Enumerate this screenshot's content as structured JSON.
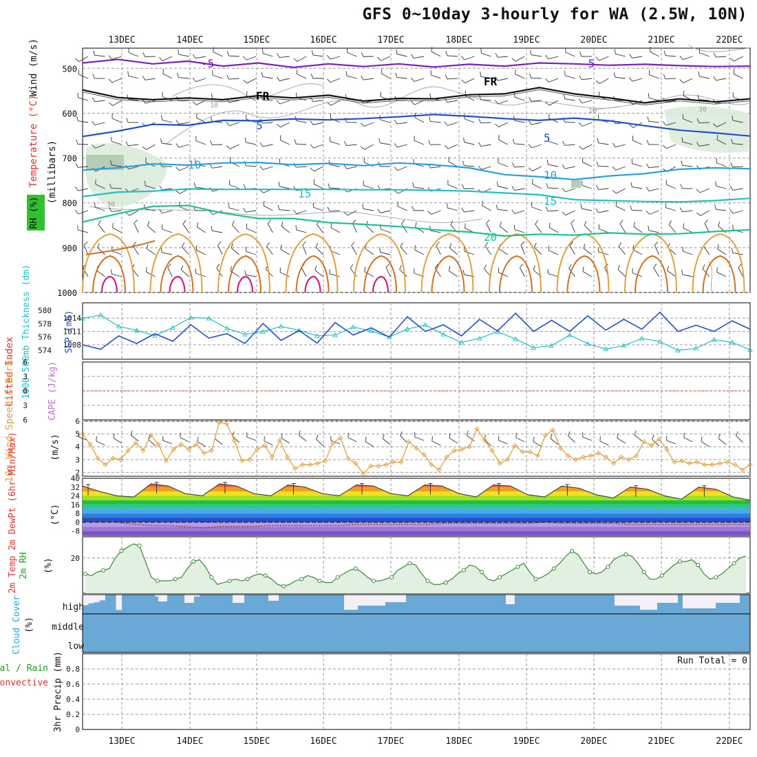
{
  "title": "GFS 0~10day 3-hourly for WA (2.5W, 10N)",
  "dates": [
    "13DEC",
    "14DEC",
    "15DEC",
    "16DEC",
    "17DEC",
    "18DEC",
    "19DEC",
    "20DEC",
    "21DEC",
    "22DEC"
  ],
  "colors": {
    "purple": "#7a1fbf",
    "blue": "#1f4fcf",
    "lightblue": "#2a9fdf",
    "cyan": "#20c0c0",
    "teal": "#20c090",
    "orange": "#e0a040",
    "darkorange": "#d07020",
    "magenta": "#d0207f",
    "green": "#20a020",
    "red": "#e03030",
    "cloud": "#6aa8d6"
  },
  "chart_data": [
    {
      "panel": "upper-air",
      "type": "line",
      "ylabel_parts": [
        "Wind (m/s)",
        "Temperature (°C)",
        "RH (%)"
      ],
      "yaxis_label": "(millibars)",
      "yticks": [
        500,
        600,
        700,
        800,
        900,
        1000
      ],
      "ylim": [
        455,
        1000
      ],
      "isotherm_labels": [
        {
          "value": "-5",
          "color": "#7a1fbf"
        },
        {
          "value": "FR",
          "color": "#000000"
        },
        {
          "value": "5",
          "color": "#1f4fcf"
        },
        {
          "value": "10",
          "color": "#2a9fdf"
        },
        {
          "value": "15",
          "color": "#20c0c0"
        },
        {
          "value": "20",
          "color": "#20c090"
        }
      ],
      "rh_labels": [
        "10",
        "30",
        "10",
        "30"
      ],
      "series": [
        {
          "name": "-5",
          "pressure": [
            488,
            480,
            490,
            484,
            495,
            488,
            498,
            490,
            496,
            490,
            497,
            491,
            495,
            488,
            490,
            493,
            491,
            494,
            496,
            495
          ]
        },
        {
          "name": "FR",
          "pressure": [
            548,
            565,
            570,
            566,
            570,
            561,
            566,
            560,
            573,
            567,
            568,
            559,
            557,
            543,
            557,
            566,
            577,
            568,
            575,
            568
          ]
        },
        {
          "name": "5",
          "pressure": [
            652,
            640,
            625,
            627,
            616,
            617,
            613,
            615,
            612,
            608,
            603,
            607,
            612,
            616,
            611,
            617,
            628,
            638,
            644,
            651
          ]
        },
        {
          "name": "10",
          "pressure": [
            727,
            722,
            713,
            716,
            711,
            710,
            715,
            712,
            717,
            711,
            715,
            722,
            737,
            742,
            748,
            740,
            735,
            725,
            722,
            724
          ]
        },
        {
          "name": "15",
          "pressure": [
            786,
            776,
            774,
            769,
            770,
            770,
            770,
            770,
            771,
            771,
            772,
            774,
            778,
            782,
            793,
            795,
            797,
            798,
            795,
            790
          ]
        },
        {
          "name": "20",
          "pressure": [
            843,
            824,
            808,
            806,
            823,
            835,
            835,
            844,
            848,
            853,
            860,
            865,
            874,
            870,
            872,
            867,
            870,
            869,
            864,
            860
          ]
        }
      ]
    },
    {
      "panel": "thickness-slp",
      "type": "line",
      "ylabel_left": "1000-500mb Thickness (dm)",
      "ylabel_right": "SLP (mb)",
      "left_ticks": [
        574,
        576,
        578,
        580
      ],
      "right_ticks": [
        1008,
        1011,
        1014
      ],
      "series": [
        {
          "name": "Thickness",
          "color": "#20c0c0",
          "values": [
            578.8,
            579.3,
            577.6,
            577.0,
            576.2,
            577.4,
            578.9,
            578.8,
            577.3,
            576.4,
            576.8,
            577.6,
            577.0,
            576.2,
            576.3,
            577.5,
            576.9,
            576.0,
            577.2,
            577.8,
            576.4,
            575.2,
            575.8,
            576.8,
            575.7,
            574.4,
            574.7,
            576.3,
            575.0,
            574.2,
            574.7,
            575.8,
            575.3,
            574.0,
            574.3,
            575.6,
            575.2,
            574.1
          ]
        },
        {
          "name": "SLP",
          "color": "#1f4fcf",
          "values": [
            1008.0,
            1007.0,
            1010.0,
            1008.3,
            1010.5,
            1008.8,
            1012.5,
            1009.5,
            1010.5,
            1008.3,
            1012.8,
            1009.0,
            1011.2,
            1008.4,
            1013.0,
            1010.2,
            1011.8,
            1009.7,
            1014.3,
            1011.0,
            1012.5,
            1010.0,
            1013.7,
            1011.1,
            1015.1,
            1011.0,
            1013.5,
            1011.0,
            1014.5,
            1011.3,
            1013.7,
            1011.5,
            1015.3,
            1011.0,
            1012.4,
            1011.0,
            1013.4,
            1011.5
          ]
        }
      ]
    },
    {
      "panel": "stability",
      "type": "line",
      "ylabel_left": "Lifted Index",
      "ylabel_right": "CAPE (J/kg)",
      "ticks": [
        "6",
        "3",
        "0",
        "3",
        "6"
      ],
      "ylim": [
        -6,
        6
      ],
      "series": [
        {
          "name": "Lifted Index",
          "values": [
            0,
            0
          ]
        }
      ]
    },
    {
      "panel": "10m-wind",
      "type": "line",
      "ylabel": "10m Wind Speed & Barbs",
      "yunit": "(m/s)",
      "yticks": [
        2,
        3,
        4,
        5,
        6
      ],
      "ylim": [
        1.7,
        6
      ],
      "series": [
        {
          "name": "Wind Speed",
          "color": "#e0a040",
          "values": [
            5.0,
            4.2,
            3.1,
            2.6,
            3.1,
            3.0,
            3.7,
            4.3,
            3.7,
            4.9,
            4.2,
            2.9,
            3.8,
            4.2,
            3.8,
            4.2,
            3.5,
            3.7,
            5.9,
            5.8,
            4.5,
            2.9,
            3.0,
            3.8,
            4.1,
            3.2,
            4.5,
            3.2,
            2.3,
            2.6,
            2.6,
            2.7,
            2.9,
            4.3,
            4.7,
            3.1,
            2.7,
            1.9,
            2.5,
            2.5,
            2.6,
            2.8,
            2.8,
            4.4,
            3.9,
            3.4,
            2.6,
            2.2,
            3.2,
            3.7,
            3.8,
            4.0,
            5.4,
            4.5,
            3.7,
            2.7,
            3.0,
            4.1,
            3.6,
            3.6,
            3.3,
            4.9,
            5.3,
            3.9,
            3.3,
            3.0,
            3.2,
            3.3,
            3.5,
            3.2,
            2.7,
            3.2,
            3.0,
            3.3,
            4.4,
            4.1,
            4.6,
            3.8,
            2.8,
            2.9,
            2.7,
            2.8,
            2.6,
            2.6,
            2.7,
            2.8,
            2.6,
            2.2,
            2.6
          ]
        }
      ]
    },
    {
      "panel": "2m-temp",
      "type": "area",
      "ylabel": "2m Temp 2m DewPt (6hr Min/Max)",
      "yunit": "(°C)",
      "yticks": [
        40,
        32,
        24,
        16,
        8,
        0,
        -8
      ],
      "yticks_extra": [
        16
      ],
      "ylim": [
        -12,
        40
      ],
      "series": [
        {
          "name": "2m Temp",
          "values": [
            33,
            28,
            24,
            23,
            35,
            33,
            26,
            24,
            35,
            33,
            26,
            24,
            34,
            32,
            26,
            24,
            34,
            33,
            26,
            24,
            34,
            33,
            26,
            23,
            34,
            33,
            25,
            23,
            33,
            31,
            25,
            22,
            32,
            30,
            24,
            21,
            32,
            30,
            23,
            20
          ]
        },
        {
          "name": "2m DewPt",
          "values": [
            4,
            3,
            0,
            -2,
            -3,
            -3,
            -4,
            -5,
            -4,
            -4,
            -4,
            -3,
            -3,
            -3,
            -3,
            -3,
            -2,
            -2,
            -2,
            -2,
            -2,
            -1,
            -1,
            -1,
            -1,
            -1,
            -1,
            0,
            -1,
            -1,
            -1,
            -1,
            -2,
            -2,
            -2,
            -2,
            -2,
            -2,
            -2,
            -2
          ]
        }
      ]
    },
    {
      "panel": "2m-rh",
      "type": "area",
      "ylabel": "2m RH",
      "yunit": "(%)",
      "yticks": [
        20
      ],
      "ylim": [
        0,
        32
      ],
      "series": [
        {
          "name": "2m RH",
          "values": [
            11,
            10,
            12,
            13,
            14,
            20,
            24,
            26,
            28,
            27,
            18,
            9,
            7,
            7,
            7,
            8,
            9,
            14,
            18,
            19,
            15,
            9,
            5,
            6,
            7,
            8,
            7,
            8,
            10,
            11,
            10,
            8,
            5,
            4,
            5,
            7,
            8,
            10,
            9,
            7,
            6,
            6,
            9,
            11,
            13,
            14,
            12,
            9,
            7,
            7,
            8,
            9,
            13,
            15,
            17,
            16,
            11,
            7,
            5,
            5,
            6,
            8,
            11,
            13,
            16,
            15,
            12,
            8,
            7,
            9,
            11,
            13,
            15,
            17,
            12,
            8,
            9,
            11,
            14,
            17,
            21,
            24,
            22,
            17,
            12,
            11,
            12,
            15,
            19,
            21,
            22,
            21,
            17,
            12,
            8,
            8,
            10,
            13,
            16,
            18,
            18,
            19,
            16,
            11,
            8,
            9,
            11,
            14,
            17,
            20,
            21
          ]
        }
      ]
    },
    {
      "panel": "cloud-cover",
      "type": "bar",
      "ylabel": "Cloud Cover",
      "yunit": "(%)",
      "levels": [
        "high",
        "middle",
        "low"
      ],
      "series": [
        {
          "name": "high",
          "values": [
            45,
            55,
            60,
            70,
            100,
            100,
            20,
            100,
            100,
            100,
            100,
            100,
            100,
            90,
            100,
            100,
            100,
            100,
            100,
            100,
            90,
            100,
            100,
            100,
            100,
            100,
            100,
            90,
            100,
            100,
            100,
            100,
            100,
            100,
            100,
            100,
            100,
            100,
            100,
            100,
            100,
            100,
            100,
            100,
            100,
            100,
            100,
            100,
            100,
            100,
            100,
            100,
            100,
            100,
            100,
            100,
            100,
            100,
            100,
            100,
            100,
            100,
            100,
            100,
            100,
            100,
            100,
            100,
            100,
            100,
            100,
            100,
            100,
            100,
            100,
            100,
            100,
            100,
            100,
            100,
            100,
            100,
            100,
            100,
            100,
            100,
            100,
            100,
            100,
            100,
            100,
            100,
            100,
            100,
            100,
            100,
            100,
            100,
            100,
            100,
            100,
            100,
            100,
            100,
            100,
            100,
            100,
            100,
            100,
            100,
            100,
            100,
            100,
            100,
            100,
            100,
            100,
            100,
            100,
            100
          ]
        },
        {
          "name": "middle",
          "values": [
            100,
            100
          ]
        },
        {
          "name": "low",
          "values": [
            100,
            100
          ]
        }
      ]
    },
    {
      "panel": "precip",
      "type": "bar",
      "ylabel_left_1": "Total / Rain",
      "ylabel_left_2": "Convective",
      "ylabel": "3hr Precip (mm)",
      "yticks": [
        0,
        0.2,
        0.4,
        0.6,
        0.8
      ],
      "ylim": [
        0,
        1
      ],
      "run_total": "Run Total = 0",
      "series": [
        {
          "name": "Total / Rain",
          "values": [
            0,
            0
          ]
        }
      ]
    }
  ]
}
